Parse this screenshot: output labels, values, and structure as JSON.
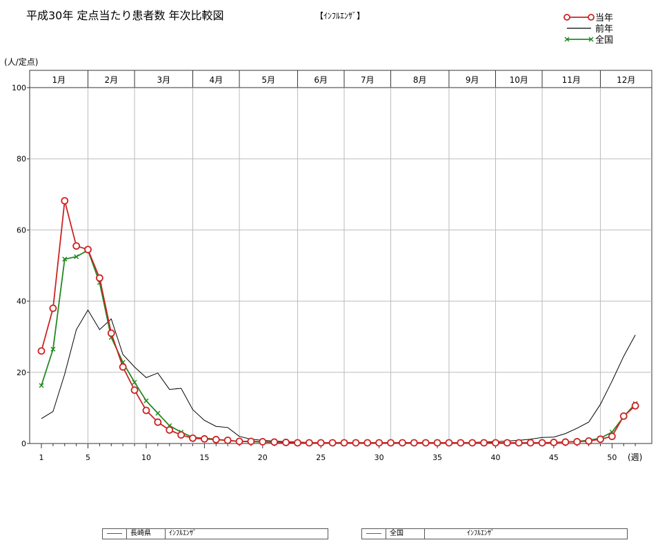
{
  "chart_data": {
    "type": "line",
    "title": "平成30年 定点当たり患者数 年次比較図",
    "subtitle": "【ｲﾝﾌﾙｴﾝｻﾞ】",
    "ylabel": "(人/定点)",
    "xlabel": "(週)",
    "ylim": [
      0,
      100
    ],
    "yticks": [
      0,
      20,
      40,
      60,
      80,
      100
    ],
    "xlim": [
      1,
      53
    ],
    "xticks": [
      1,
      5,
      10,
      15,
      20,
      25,
      30,
      35,
      40,
      45,
      50
    ],
    "grid": true,
    "legend_position": "top-right",
    "months": [
      {
        "label": "1月",
        "start_week": 1,
        "end_week": 5
      },
      {
        "label": "2月",
        "start_week": 5,
        "end_week": 9
      },
      {
        "label": "3月",
        "start_week": 9,
        "end_week": 14
      },
      {
        "label": "4月",
        "start_week": 14,
        "end_week": 18
      },
      {
        "label": "5月",
        "start_week": 18,
        "end_week": 23
      },
      {
        "label": "6月",
        "start_week": 23,
        "end_week": 27
      },
      {
        "label": "7月",
        "start_week": 27,
        "end_week": 31
      },
      {
        "label": "8月",
        "start_week": 31,
        "end_week": 36
      },
      {
        "label": "9月",
        "start_week": 36,
        "end_week": 40
      },
      {
        "label": "10月",
        "start_week": 40,
        "end_week": 44
      },
      {
        "label": "11月",
        "start_week": 44,
        "end_week": 49
      },
      {
        "label": "12月",
        "start_week": 49,
        "end_week": 53
      }
    ],
    "series": [
      {
        "name": "当年",
        "color": "#cc2222",
        "marker": "circle",
        "x": [
          1,
          2,
          3,
          4,
          5,
          6,
          7,
          8,
          9,
          10,
          11,
          12,
          13,
          14,
          15,
          16,
          17,
          18,
          19,
          20,
          21,
          22,
          23,
          24,
          25,
          26,
          27,
          28,
          29,
          30,
          31,
          32,
          33,
          34,
          35,
          36,
          37,
          38,
          39,
          40,
          41,
          42,
          43,
          44,
          45,
          46,
          47,
          48,
          49,
          50,
          51,
          52
        ],
        "values": [
          26,
          38,
          68.2,
          55.5,
          54.5,
          46.5,
          31,
          21.5,
          15,
          9.3,
          6,
          3.8,
          2.4,
          1.5,
          1.3,
          1.1,
          0.9,
          0.6,
          0.6,
          0.5,
          0.4,
          0.3,
          0.2,
          0.2,
          0.2,
          0.2,
          0.2,
          0.2,
          0.2,
          0.2,
          0.2,
          0.2,
          0.2,
          0.2,
          0.2,
          0.2,
          0.2,
          0.2,
          0.2,
          0.2,
          0.2,
          0.2,
          0.2,
          0.2,
          0.3,
          0.4,
          0.5,
          0.7,
          1.2,
          2,
          7.7,
          10.6
        ]
      },
      {
        "name": "前年",
        "color": "#000000",
        "marker": "none",
        "x": [
          1,
          2,
          3,
          4,
          5,
          6,
          7,
          8,
          9,
          10,
          11,
          12,
          13,
          14,
          15,
          16,
          17,
          18,
          19,
          20,
          21,
          22,
          23,
          24,
          25,
          26,
          27,
          28,
          29,
          30,
          31,
          32,
          33,
          34,
          35,
          36,
          37,
          38,
          39,
          40,
          41,
          42,
          43,
          44,
          45,
          46,
          47,
          48,
          49,
          50,
          51,
          52
        ],
        "values": [
          7,
          9,
          19.5,
          32,
          37.5,
          32,
          35,
          25,
          21.5,
          18.5,
          19.8,
          15.2,
          15.5,
          9.5,
          6.5,
          4.8,
          4.5,
          2,
          1.2,
          0.9,
          0.7,
          0.5,
          0.4,
          0.3,
          0.3,
          0.3,
          0.3,
          0.3,
          0.3,
          0.3,
          0.3,
          0.3,
          0.3,
          0.3,
          0.3,
          0.3,
          0.3,
          0.3,
          0.4,
          0.5,
          0.7,
          0.9,
          1.2,
          1.7,
          1.8,
          2.8,
          4.3,
          6,
          11,
          17.5,
          24.5,
          30.5
        ]
      },
      {
        "name": "全国",
        "color": "#228822",
        "marker": "x",
        "x": [
          1,
          2,
          3,
          4,
          5,
          6,
          7,
          8,
          9,
          10,
          11,
          12,
          13,
          14,
          15,
          16,
          17,
          18,
          19,
          20,
          21,
          22,
          23,
          24,
          25,
          26,
          27,
          28,
          29,
          30,
          31,
          32,
          33,
          34,
          35,
          36,
          37,
          38,
          39,
          40,
          41,
          42,
          43,
          44,
          45,
          46,
          47,
          48,
          49,
          50,
          51,
          52
        ],
        "values": [
          16.3,
          26.5,
          51.8,
          52.5,
          54.3,
          45.2,
          29.8,
          22.8,
          17.2,
          12,
          8.5,
          5,
          3.2,
          1.7,
          1.5,
          1.2,
          0.8,
          0.6,
          0.5,
          0.4,
          0.3,
          0.3,
          0.2,
          0.2,
          0.2,
          0.2,
          0.2,
          0.2,
          0.2,
          0.2,
          0.2,
          0.2,
          0.2,
          0.2,
          0.2,
          0.2,
          0.2,
          0.2,
          0.2,
          0.2,
          0.2,
          0.2,
          0.2,
          0.2,
          0.3,
          0.4,
          0.6,
          0.9,
          1.5,
          3.2,
          7.5,
          11.2
        ]
      }
    ]
  },
  "bottom_legend": [
    {
      "region": "長崎県",
      "disease": "ｲﾝﾌﾙｴﾝｻﾞ",
      "color": "#cc2222"
    },
    {
      "region": "全国",
      "disease": "ｲﾝﾌﾙｴﾝｻﾞ",
      "color": "#228822"
    }
  ]
}
